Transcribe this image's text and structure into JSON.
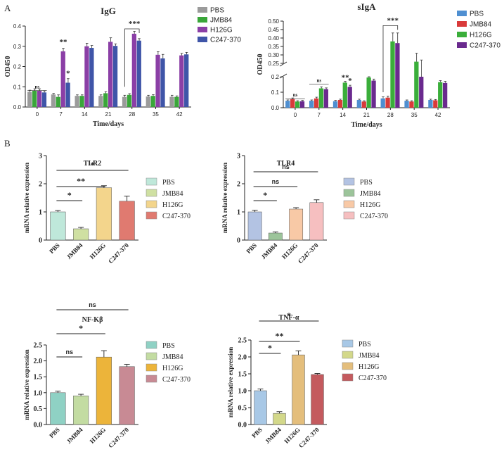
{
  "panel_labels": [
    "A",
    "B"
  ],
  "colors": {
    "igg": [
      "#9b9b9b",
      "#3aa63a",
      "#8b3fa6",
      "#3f55a8"
    ],
    "siga": [
      "#4f8fd1",
      "#d93a3a",
      "#3aae3a",
      "#6a2a8e"
    ],
    "tlr2": [
      "#bfe8da",
      "#cfe0a2",
      "#f3d58c",
      "#e07a70"
    ],
    "tlr4": [
      "#b3c3e3",
      "#9cc49a",
      "#f8c9a6",
      "#f6bfc0"
    ],
    "nfkb": [
      "#8fd1c4",
      "#c3dca2",
      "#ecb43a",
      "#c88a94"
    ],
    "tnfa": [
      "#a8c8e6",
      "#d3d88a",
      "#e4be7c",
      "#c45a5e"
    ]
  },
  "chart_data": [
    {
      "id": "igg",
      "type": "bar",
      "title": "IgG",
      "xlabel": "Time/days",
      "ylabel": "OD450",
      "ylim": [
        0,
        0.4
      ],
      "yticks": [
        "0.0",
        "0.1",
        "0.2",
        "0.3",
        "0.4"
      ],
      "categories": [
        "0",
        "7",
        "14",
        "21",
        "28",
        "35",
        "42"
      ],
      "legend": [
        "PBS",
        "JMB84",
        "H126G",
        "C247-370"
      ],
      "series": [
        {
          "name": "PBS",
          "values": [
            0.075,
            0.062,
            0.055,
            0.055,
            0.05,
            0.052,
            0.05
          ],
          "errors": [
            0.008,
            0.005,
            0.005,
            0.005,
            0.008,
            0.006,
            0.008
          ]
        },
        {
          "name": "JMB84",
          "values": [
            0.08,
            0.05,
            0.055,
            0.068,
            0.06,
            0.055,
            0.05
          ],
          "errors": [
            0.01,
            0.01,
            0.005,
            0.008,
            0.006,
            0.006,
            0.005
          ]
        },
        {
          "name": "H126G",
          "values": [
            0.08,
            0.275,
            0.3,
            0.322,
            0.362,
            0.258,
            0.255
          ],
          "errors": [
            0.01,
            0.015,
            0.015,
            0.02,
            0.012,
            0.015,
            0.01
          ]
        },
        {
          "name": "C247-370",
          "values": [
            0.072,
            0.12,
            0.292,
            0.302,
            0.328,
            0.24,
            0.26
          ],
          "errors": [
            0.008,
            0.02,
            0.012,
            0.01,
            0.01,
            0.02,
            0.01
          ]
        }
      ],
      "annotations": [
        {
          "text": "ns",
          "category": 0,
          "series": 0,
          "value": 0.092
        },
        {
          "text": "**",
          "category": 1,
          "series": 2,
          "value": 0.31
        },
        {
          "text": "*",
          "category": 1,
          "series": 3,
          "value": 0.155
        },
        {
          "text": "***",
          "category": 4,
          "series": 1,
          "value": 0.4
        }
      ]
    },
    {
      "id": "siga",
      "type": "bar",
      "title": "sIgA",
      "xlabel": "Time/days",
      "ylabel": "OD450",
      "broken_axis": {
        "lower": [
          0,
          0.2
        ],
        "upper": [
          0.25,
          0.5
        ]
      },
      "yticks_lower": [
        "0.0",
        "0.1",
        "0.2"
      ],
      "yticks_upper": [
        "0.25",
        "0.30",
        "0.35",
        "0.40",
        "0.45",
        "0.50"
      ],
      "categories": [
        "0",
        "7",
        "14",
        "21",
        "28",
        "35",
        "42"
      ],
      "legend": [
        "PBS",
        "JMB84",
        "H126G",
        "C247-370"
      ],
      "series": [
        {
          "name": "PBS",
          "values": [
            0.045,
            0.045,
            0.042,
            0.05,
            0.06,
            0.045,
            0.05
          ],
          "errors": [
            0.005,
            0.005,
            0.005,
            0.005,
            0.01,
            0.005,
            0.005
          ]
        },
        {
          "name": "JMB84",
          "values": [
            0.055,
            0.06,
            0.05,
            0.04,
            0.065,
            0.04,
            0.048
          ],
          "errors": [
            0.008,
            0.008,
            0.005,
            0.005,
            0.01,
            0.005,
            0.005
          ]
        },
        {
          "name": "H126G",
          "values": [
            0.04,
            0.125,
            0.162,
            0.195,
            0.38,
            0.26,
            0.165
          ],
          "errors": [
            0.005,
            0.01,
            0.008,
            0.045,
            0.05,
            0.05,
            0.01
          ]
        },
        {
          "name": "C247-370",
          "values": [
            0.042,
            0.12,
            0.135,
            0.175,
            0.37,
            0.23,
            0.16
          ],
          "errors": [
            0.005,
            0.008,
            0.01,
            0.01,
            0.06,
            0.04,
            0.01
          ]
        }
      ],
      "annotations": [
        {
          "text": "ns",
          "category": 0,
          "series": 0,
          "value": 0.072
        },
        {
          "text": "ns",
          "category": 1,
          "series": 0,
          "value": 0.165
        },
        {
          "text": "**",
          "category": 2,
          "series": 2,
          "value": 0.18
        },
        {
          "text": "*",
          "category": 2,
          "series": 3,
          "value": 0.158
        },
        {
          "text": "***",
          "category": 4,
          "series": 1,
          "value": 0.49
        }
      ]
    },
    {
      "id": "tlr2",
      "type": "bar",
      "title": "TLR2",
      "ylabel": "mRNA relative expression",
      "ylim": [
        0,
        3
      ],
      "yticks": [
        "0",
        "1",
        "2",
        "3"
      ],
      "categories": [
        "PBS",
        "JMB84",
        "H126G",
        "C247-370"
      ],
      "values": [
        1.0,
        0.4,
        1.86,
        1.38
      ],
      "errors": [
        0.05,
        0.05,
        0.07,
        0.18
      ],
      "brackets": [
        {
          "from": 0,
          "to": 1,
          "text": "*"
        },
        {
          "from": 0,
          "to": 2,
          "text": "**"
        },
        {
          "from": 0,
          "to": 3,
          "text": "*"
        }
      ]
    },
    {
      "id": "tlr4",
      "type": "bar",
      "title": "TLR4",
      "ylabel": "mRNA relative expression",
      "ylim": [
        0,
        3
      ],
      "yticks": [
        "0",
        "1",
        "2",
        "3"
      ],
      "categories": [
        "PBS",
        "JMB84",
        "H126G",
        "C247-370"
      ],
      "values": [
        1.0,
        0.25,
        1.1,
        1.33
      ],
      "errors": [
        0.06,
        0.04,
        0.05,
        0.1
      ],
      "brackets": [
        {
          "from": 0,
          "to": 1,
          "text": "*"
        },
        {
          "from": 0,
          "to": 2,
          "text": "ns"
        },
        {
          "from": 0,
          "to": 3,
          "text": "ns"
        }
      ]
    },
    {
      "id": "nfkb",
      "type": "bar",
      "title": "NF-Kβ",
      "ylabel": "mRNA relative expression",
      "ylim": [
        0,
        2.5
      ],
      "yticks": [
        "0.0",
        "0.5",
        "1.0",
        "1.5",
        "2.0",
        "2.5"
      ],
      "categories": [
        "PBS",
        "JMB84",
        "H126G",
        "C247-370"
      ],
      "values": [
        1.0,
        0.9,
        2.12,
        1.82
      ],
      "errors": [
        0.05,
        0.05,
        0.2,
        0.07
      ],
      "brackets": [
        {
          "from": 0,
          "to": 1,
          "text": "ns"
        },
        {
          "from": 0,
          "to": 2,
          "text": "*"
        },
        {
          "from": 0,
          "to": 3,
          "text": "ns"
        }
      ]
    },
    {
      "id": "tnfa",
      "type": "bar",
      "title": "TNF-α",
      "ylabel": "mRNA relative expression",
      "ylim": [
        0,
        2.5
      ],
      "yticks": [
        "0.0",
        "0.5",
        "1.0",
        "1.5",
        "2.0",
        "2.5"
      ],
      "categories": [
        "PBS",
        "JMB84",
        "H126G",
        "C247-370"
      ],
      "values": [
        1.0,
        0.33,
        2.06,
        1.48
      ],
      "errors": [
        0.05,
        0.05,
        0.12,
        0.03
      ],
      "brackets": [
        {
          "from": 0,
          "to": 1,
          "text": "*"
        },
        {
          "from": 0,
          "to": 2,
          "text": "**"
        },
        {
          "from": 0,
          "to": 3,
          "text": "*"
        }
      ]
    }
  ]
}
